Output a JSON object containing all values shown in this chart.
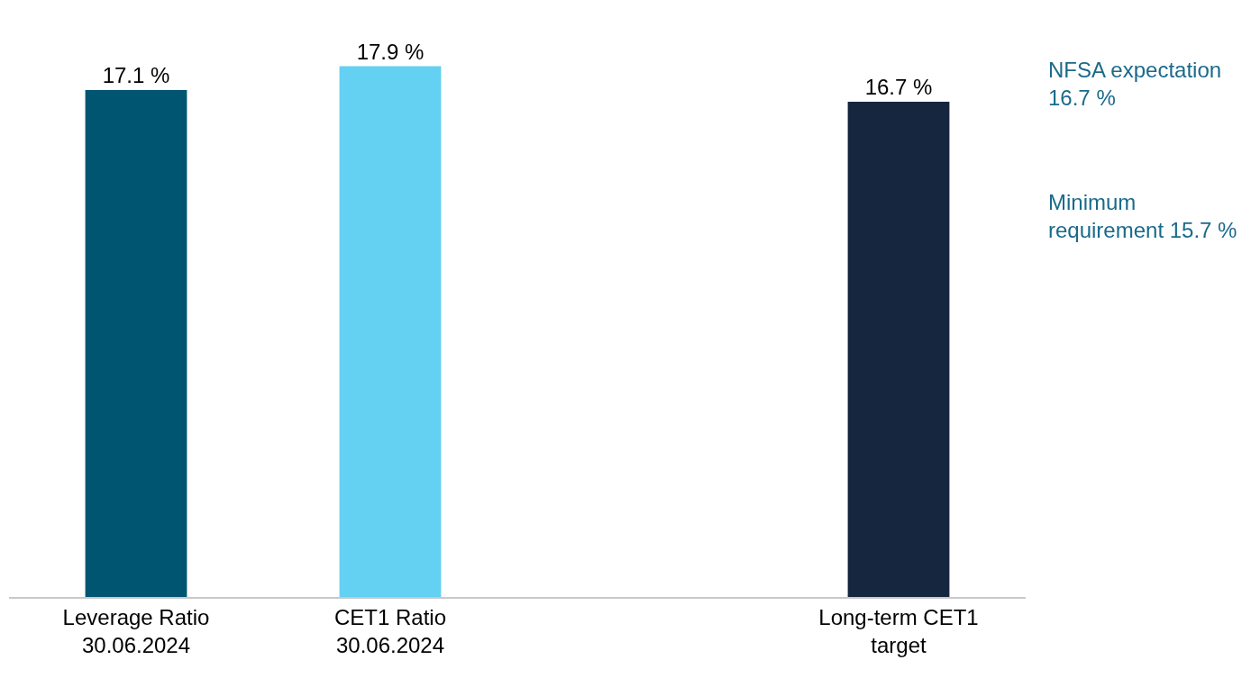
{
  "chart_data": {
    "type": "bar",
    "categories": [
      "Leverage Ratio\n30.06.2024",
      "CET1 Ratio\n30.06.2024",
      null,
      "Long-term CET1\ntarget"
    ],
    "series": [
      {
        "colors": [
          "#005570",
          "#64d0f2",
          "#ffffff",
          "#17263f"
        ],
        "values": [
          17.1,
          17.9,
          null,
          16.7
        ],
        "value_labels": [
          "17.1 %",
          "17.9 %",
          null,
          "16.7 %"
        ]
      }
    ],
    "annotations": [
      "NFSA expectation\n16.7 %",
      "Minimum\nrequirement 15.7 %"
    ],
    "grid": false
  }
}
